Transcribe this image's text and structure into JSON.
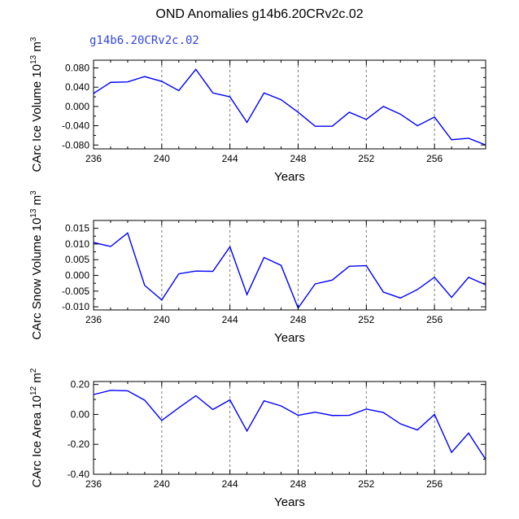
{
  "figure": {
    "title": "OND Anomalies g14b6.20CRv2c.02",
    "subtitle": "g14b6.20CRv2c.02"
  },
  "colors": {
    "line": "#0000ff",
    "axis": "#000000",
    "grid": "#777777"
  },
  "chart_data": [
    {
      "type": "line",
      "name": "ice-volume",
      "xlabel": "Years",
      "ylabel": {
        "pre": "CArc Ice Volume 10",
        "sup": "13",
        "mid": " m",
        "sup2": "3",
        "post": ""
      },
      "xlim": [
        236,
        259
      ],
      "ylim": [
        -0.088,
        0.096
      ],
      "xticks": [
        236,
        240,
        244,
        248,
        252,
        256
      ],
      "yticks": [
        0.08,
        0.04,
        0.0,
        -0.04,
        -0.08
      ],
      "ytick_labels": [
        "0.080",
        "0.040",
        "0.000",
        "-0.040",
        "-0.080"
      ],
      "grid_x": [
        240,
        244,
        248,
        252,
        256
      ],
      "x": [
        236,
        237,
        238,
        239,
        240,
        241,
        242,
        243,
        244,
        245,
        246,
        247,
        248,
        249,
        250,
        251,
        252,
        253,
        254,
        255,
        256,
        257,
        258,
        259
      ],
      "values": [
        0.027,
        0.05,
        0.051,
        0.062,
        0.052,
        0.033,
        0.077,
        0.028,
        0.02,
        -0.033,
        0.028,
        0.014,
        -0.012,
        -0.041,
        -0.041,
        -0.012,
        -0.027,
        0.0,
        -0.016,
        -0.04,
        -0.022,
        -0.069,
        -0.066,
        -0.08
      ]
    },
    {
      "type": "line",
      "name": "snow-volume",
      "xlabel": "Years",
      "ylabel": {
        "pre": "CArc Snow Volume 10",
        "sup": "13",
        "mid": " m",
        "sup2": "3",
        "post": ""
      },
      "xlim": [
        236,
        259
      ],
      "ylim": [
        -0.011,
        0.0175
      ],
      "xticks": [
        236,
        240,
        244,
        248,
        252,
        256
      ],
      "yticks": [
        0.015,
        0.01,
        0.005,
        0.0,
        -0.005,
        -0.01
      ],
      "ytick_labels": [
        "0.015",
        "0.010",
        "0.005",
        "0.000",
        "-0.005",
        "-0.010"
      ],
      "grid_x": [
        240,
        244,
        248,
        252,
        256
      ],
      "x": [
        236,
        237,
        238,
        239,
        240,
        241,
        242,
        243,
        244,
        245,
        246,
        247,
        248,
        249,
        250,
        251,
        252,
        253,
        254,
        255,
        256,
        257,
        258,
        259
      ],
      "values": [
        0.0105,
        0.0092,
        0.0135,
        -0.0032,
        -0.0078,
        0.0005,
        0.0014,
        0.0013,
        0.0091,
        -0.0061,
        0.0057,
        0.0032,
        -0.0104,
        -0.0027,
        -0.0015,
        0.0029,
        0.0031,
        -0.0053,
        -0.0072,
        -0.0045,
        -0.0006,
        -0.007,
        -0.0006,
        -0.003
      ]
    },
    {
      "type": "line",
      "name": "ice-area",
      "xlabel": "Years",
      "ylabel": {
        "pre": "CArc Ice Area 10",
        "sup": "12",
        "mid": " m",
        "sup2": "2",
        "post": ""
      },
      "xlim": [
        236,
        259
      ],
      "ylim": [
        -0.4,
        0.22
      ],
      "xticks": [
        236,
        240,
        244,
        248,
        252,
        256
      ],
      "yticks": [
        0.2,
        0.0,
        -0.2,
        -0.4
      ],
      "ytick_labels": [
        "0.20",
        "0.00",
        "-0.20",
        "-0.40"
      ],
      "grid_x": [
        240,
        244,
        248,
        252,
        256
      ],
      "x": [
        236,
        237,
        238,
        239,
        240,
        241,
        242,
        243,
        244,
        245,
        246,
        247,
        248,
        249,
        250,
        251,
        252,
        253,
        254,
        255,
        256,
        257,
        258,
        259
      ],
      "values": [
        0.133,
        0.161,
        0.158,
        0.095,
        -0.04,
        0.044,
        0.125,
        0.033,
        0.097,
        -0.111,
        0.091,
        0.057,
        -0.006,
        0.015,
        -0.007,
        -0.006,
        0.036,
        0.013,
        -0.063,
        -0.104,
        0.0,
        -0.254,
        -0.125,
        -0.301
      ]
    }
  ]
}
